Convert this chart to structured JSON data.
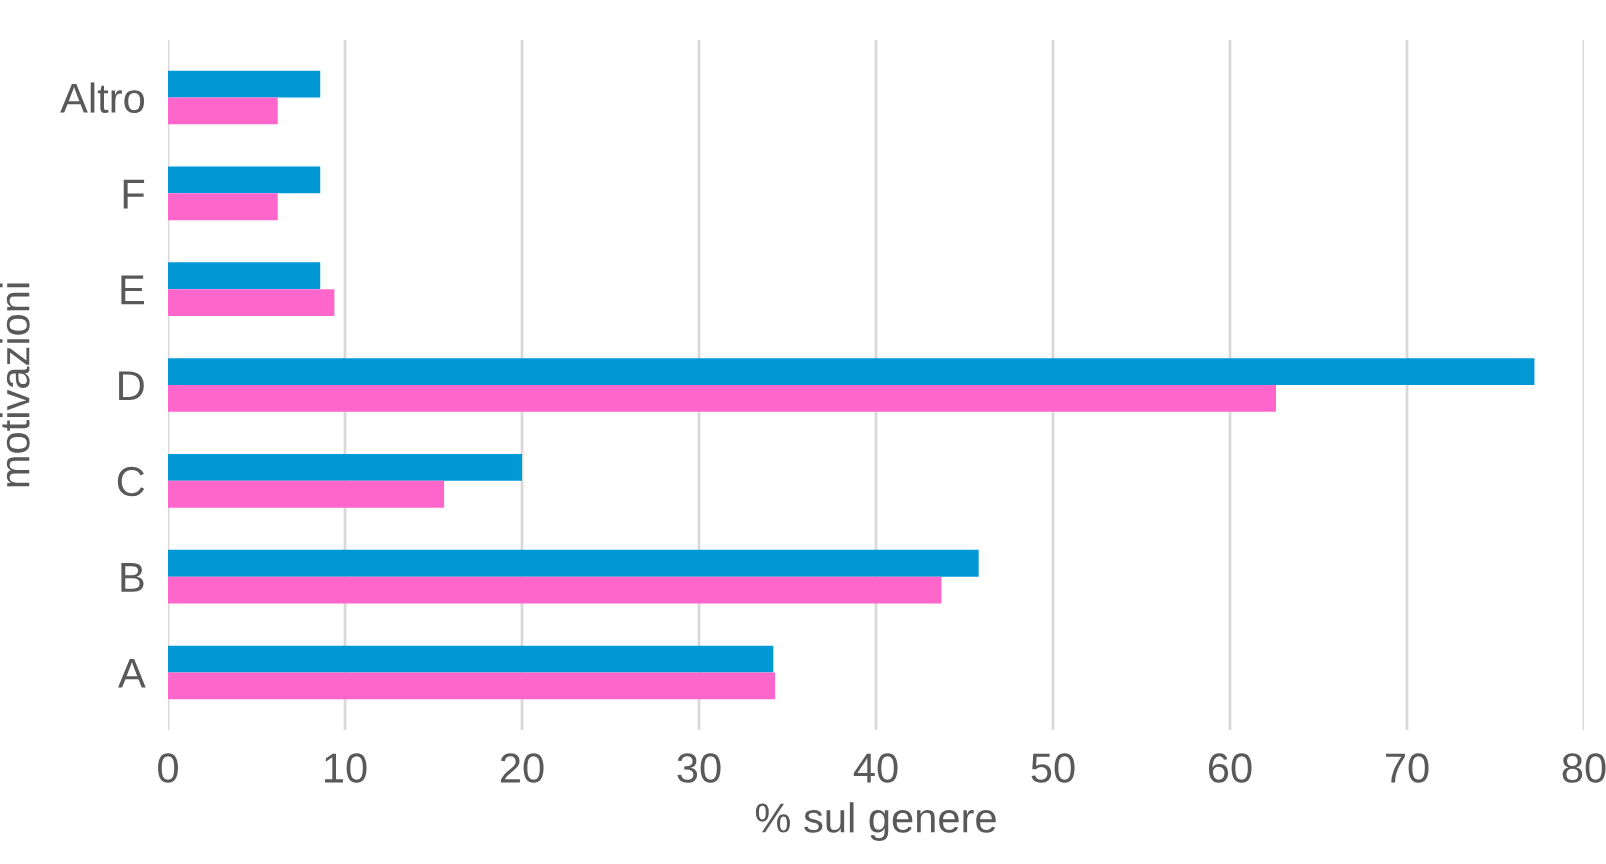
{
  "chart_data": {
    "type": "bar",
    "orientation": "horizontal",
    "xlabel": "% sul genere",
    "ylabel": "motivazioni",
    "categories": [
      "Altro",
      "F",
      "E",
      "D",
      "C",
      "B",
      "A"
    ],
    "series": [
      {
        "color": "#0099d6",
        "values": [
          8.6,
          8.6,
          8.6,
          77.2,
          20.0,
          45.8,
          34.2
        ]
      },
      {
        "color": "#ff66cc",
        "values": [
          6.2,
          6.2,
          9.4,
          62.6,
          15.6,
          43.7,
          34.3
        ]
      }
    ],
    "xlim": [
      0,
      80
    ],
    "xticks": [
      0,
      10,
      20,
      30,
      40,
      50,
      60,
      70,
      80
    ],
    "grid": "x",
    "legend": false
  }
}
